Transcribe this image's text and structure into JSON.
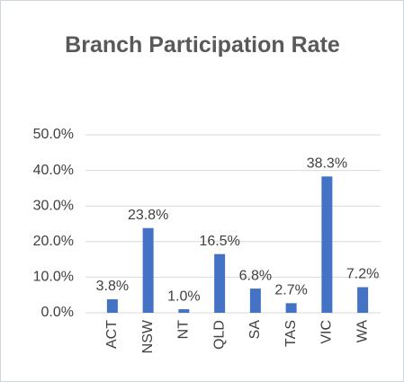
{
  "chart_data": {
    "type": "bar",
    "title": "Branch Participation Rate",
    "categories": [
      "ACT",
      "NSW",
      "NT",
      "QLD",
      "SA",
      "TAS",
      "VIC",
      "WA"
    ],
    "values": [
      3.8,
      23.8,
      1.0,
      16.5,
      6.8,
      2.7,
      38.3,
      7.2
    ],
    "value_labels": [
      "3.8%",
      "23.8%",
      "1.0%",
      "16.5%",
      "6.8%",
      "2.7%",
      "38.3%",
      "7.2%"
    ],
    "color": "#4472c4",
    "ylim": [
      0,
      50
    ],
    "yticks": [
      {
        "value": 0,
        "label": "0.0%"
      },
      {
        "value": 10,
        "label": "10.0%"
      },
      {
        "value": 20,
        "label": "20.0%"
      },
      {
        "value": 30,
        "label": "30.0%"
      },
      {
        "value": 40,
        "label": "40.0%"
      },
      {
        "value": 50,
        "label": "50.0%"
      }
    ],
    "grid": true
  }
}
